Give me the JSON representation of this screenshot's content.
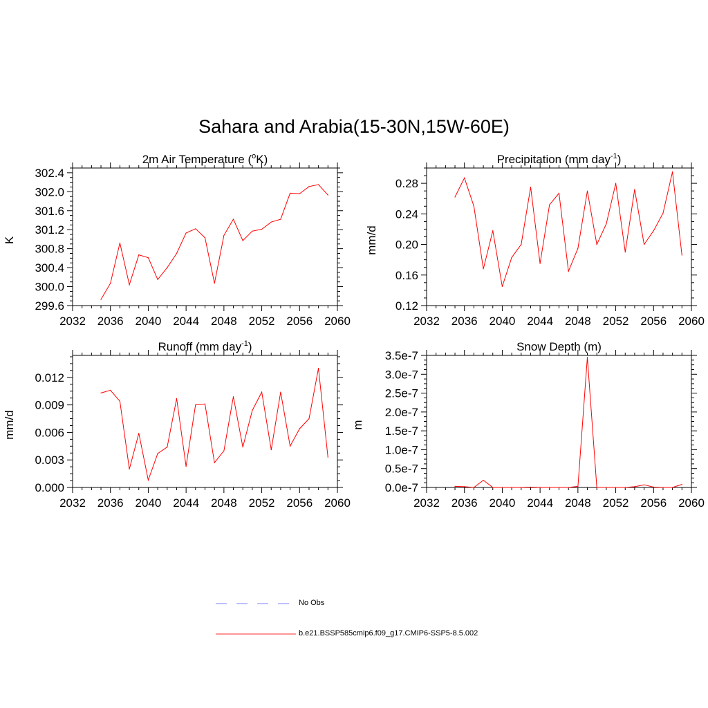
{
  "title": "Sahara and Arabia(15-30N,15W-60E)",
  "legend": [
    {
      "label": "No Obs",
      "style": "dashed",
      "color": "#9999ff"
    },
    {
      "label": "b.e21.BSSP585cmip6.f09_g17.CMIP6-SSP5-8.5.002",
      "style": "solid",
      "color": "#ff5555"
    }
  ],
  "chart_data": [
    {
      "type": "line",
      "title": "2m Air Temperature (",
      "title_sup": "o",
      "title_after": "K)",
      "ylabel": "K",
      "xlim": [
        2032,
        2060
      ],
      "xticks": [
        "2032",
        "2036",
        "2040",
        "2044",
        "2048",
        "2052",
        "2056",
        "2060"
      ],
      "ylim": [
        299.6,
        302.5
      ],
      "yticks": [
        "299.6",
        "300.0",
        "300.4",
        "300.8",
        "301.2",
        "301.6",
        "302.0",
        "302.4"
      ],
      "ytick_values": [
        299.6,
        300.0,
        300.4,
        300.8,
        301.2,
        301.6,
        302.0,
        302.4
      ],
      "line_color": "#ff0000",
      "x": [
        2035,
        2036,
        2037,
        2038,
        2039,
        2040,
        2041,
        2042,
        2043,
        2044,
        2045,
        2046,
        2047,
        2048,
        2049,
        2050,
        2051,
        2052,
        2053,
        2054,
        2055,
        2056,
        2057,
        2058,
        2059
      ],
      "y": [
        299.73,
        300.07,
        300.92,
        300.04,
        300.67,
        300.61,
        300.15,
        300.4,
        300.7,
        301.13,
        301.22,
        301.03,
        300.07,
        301.08,
        301.42,
        300.97,
        301.17,
        301.21,
        301.36,
        301.42,
        301.97,
        301.96,
        302.11,
        302.15,
        301.93
      ]
    },
    {
      "type": "line",
      "title": "Precipitation (mm day",
      "title_sup": "-1",
      "title_after": ")",
      "ylabel": "mm/d",
      "xlim": [
        2032,
        2060
      ],
      "xticks": [
        "2032",
        "2036",
        "2040",
        "2044",
        "2048",
        "2052",
        "2056",
        "2060"
      ],
      "ylim": [
        0.12,
        0.3
      ],
      "yticks": [
        "0.12",
        "0.16",
        "0.20",
        "0.24",
        "0.28"
      ],
      "ytick_values": [
        0.12,
        0.16,
        0.2,
        0.24,
        0.28
      ],
      "line_color": "#ff0000",
      "x": [
        2035,
        2036,
        2037,
        2038,
        2039,
        2040,
        2041,
        2042,
        2043,
        2044,
        2045,
        2046,
        2047,
        2048,
        2049,
        2050,
        2051,
        2052,
        2053,
        2054,
        2055,
        2056,
        2057,
        2058,
        2059
      ],
      "y": [
        0.262,
        0.287,
        0.25,
        0.168,
        0.218,
        0.145,
        0.183,
        0.2,
        0.275,
        0.175,
        0.252,
        0.267,
        0.165,
        0.195,
        0.27,
        0.2,
        0.227,
        0.28,
        0.19,
        0.272,
        0.2,
        0.218,
        0.241,
        0.295,
        0.186
      ]
    },
    {
      "type": "line",
      "title": "Runoff (mm day",
      "title_sup": "-1",
      "title_after": ")",
      "ylabel": "mm/d",
      "xlim": [
        2032,
        2060
      ],
      "xticks": [
        "2032",
        "2036",
        "2040",
        "2044",
        "2048",
        "2052",
        "2056",
        "2060"
      ],
      "ylim": [
        0.0,
        0.0144
      ],
      "yticks": [
        "0.000",
        "0.003",
        "0.006",
        "0.009",
        "0.012"
      ],
      "ytick_values": [
        0.0,
        0.003,
        0.006,
        0.009,
        0.012
      ],
      "line_color": "#ff0000",
      "x": [
        2035,
        2036,
        2037,
        2038,
        2039,
        2040,
        2041,
        2042,
        2043,
        2044,
        2045,
        2046,
        2047,
        2048,
        2049,
        2050,
        2051,
        2052,
        2053,
        2054,
        2055,
        2056,
        2057,
        2058,
        2059
      ],
      "y": [
        0.0103,
        0.0106,
        0.0094,
        0.002,
        0.0059,
        0.0008,
        0.0037,
        0.0044,
        0.0097,
        0.0023,
        0.009,
        0.0091,
        0.0027,
        0.004,
        0.0099,
        0.0044,
        0.0084,
        0.0104,
        0.0041,
        0.0104,
        0.0045,
        0.0064,
        0.0075,
        0.013,
        0.0033
      ]
    },
    {
      "type": "line",
      "title": "Snow Depth (m)",
      "title_sup": "",
      "title_after": "",
      "ylabel": "m",
      "xlim": [
        2032,
        2060
      ],
      "xticks": [
        "2032",
        "2036",
        "2040",
        "2044",
        "2048",
        "2052",
        "2056",
        "2060"
      ],
      "ylim": [
        0.0,
        3.5e-07
      ],
      "yticks": [
        "0.0e-7",
        "0.5e-7",
        "1.0e-7",
        "1.5e-7",
        "2.0e-7",
        "2.5e-7",
        "3.0e-7",
        "3.5e-7"
      ],
      "ytick_values": [
        0.0,
        5e-08,
        1e-07,
        1.5e-07,
        2e-07,
        2.5e-07,
        3e-07,
        3.5e-07
      ],
      "line_color": "#ff0000",
      "x": [
        2035,
        2036,
        2037,
        2038,
        2039,
        2040,
        2041,
        2042,
        2043,
        2044,
        2045,
        2046,
        2047,
        2048,
        2049,
        2050,
        2051,
        2052,
        2053,
        2054,
        2055,
        2056,
        2057,
        2058,
        2059
      ],
      "y": [
        3e-09,
        2e-09,
        0.0,
        1.9e-08,
        0.0,
        0.0,
        0.0,
        0.0,
        1e-09,
        0.0,
        0.0,
        0.0,
        0.0,
        3e-09,
        3.45e-07,
        0.0,
        0.0,
        0.0,
        0.0,
        2e-09,
        7e-09,
        1e-09,
        0.0,
        0.0,
        8e-09
      ]
    }
  ]
}
